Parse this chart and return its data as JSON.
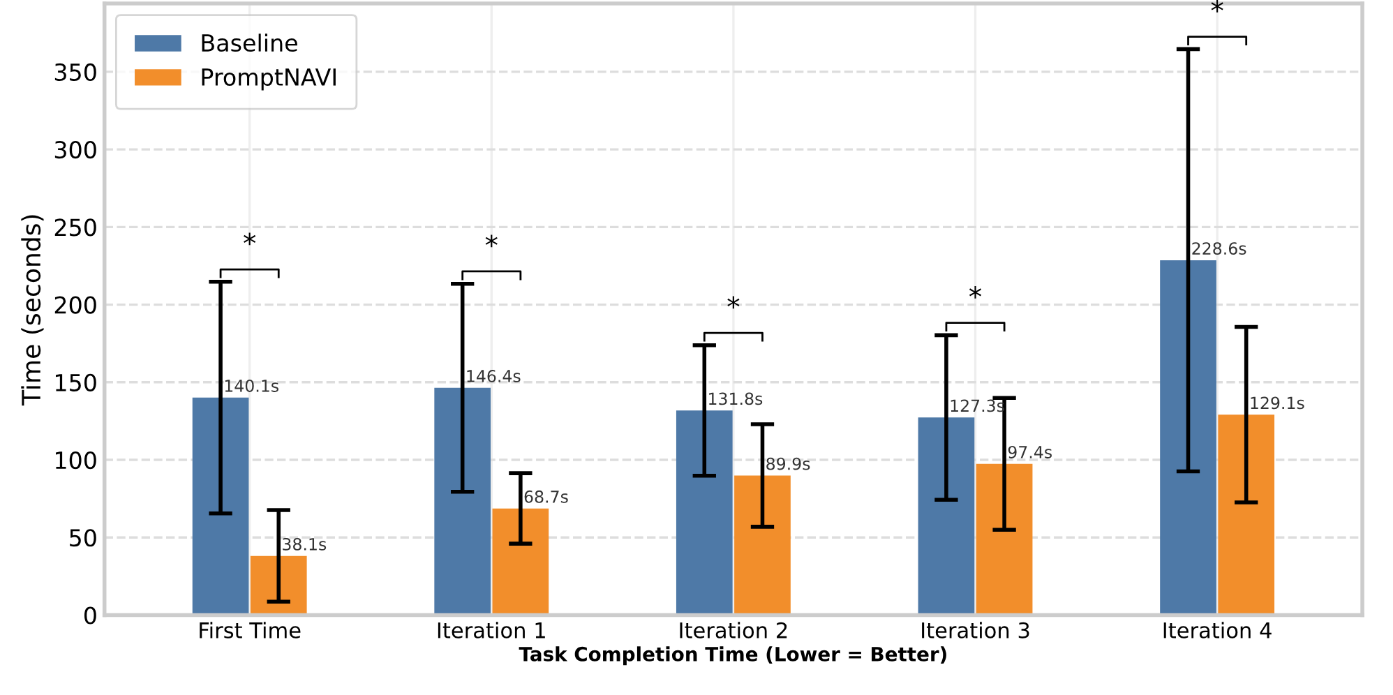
{
  "chart_data": {
    "type": "bar",
    "xlabel": "Task Completion Time (Lower = Better)",
    "ylabel": "Time (seconds)",
    "categories": [
      "First Time",
      "Iteration 1",
      "Iteration 2",
      "Iteration 3",
      "Iteration 4"
    ],
    "series": [
      {
        "name": "Baseline",
        "color": "#4e79a7",
        "values": [
          140.1,
          146.4,
          131.8,
          127.3,
          228.6
        ],
        "errors": [
          74.6,
          67,
          42,
          53,
          136
        ],
        "value_labels": [
          "140.1s",
          "146.4s",
          "131.8s",
          "127.3s",
          "228.6s"
        ]
      },
      {
        "name": "PromptNAVI",
        "color": "#f28e2b",
        "values": [
          38.1,
          68.7,
          89.9,
          97.4,
          129.1
        ],
        "errors": [
          29.5,
          22.7,
          33,
          42.5,
          56.5
        ],
        "value_labels": [
          "38.1s",
          "68.7s",
          "89.9s",
          "97.4s",
          "129.1s"
        ]
      }
    ],
    "ylim": [
      0,
      394
    ],
    "yticks": [
      0,
      50,
      100,
      150,
      200,
      250,
      300,
      350
    ],
    "grid": true,
    "legend": "top left",
    "annotations": [
      "*",
      "*",
      "*",
      "*",
      "*"
    ]
  }
}
